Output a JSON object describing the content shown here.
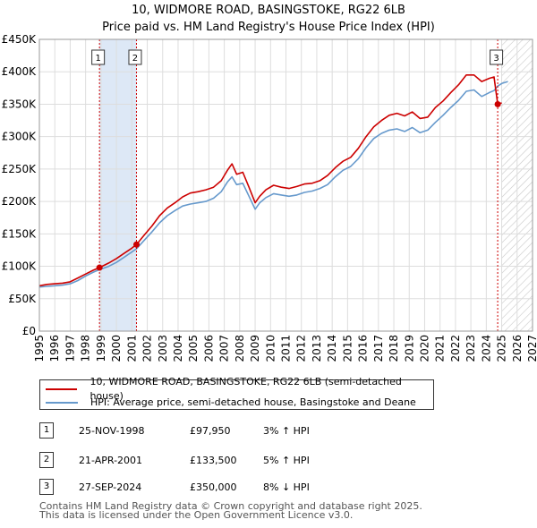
{
  "title_line1": "10, WIDMORE ROAD, BASINGSTOKE, RG22 6LB",
  "title_line2": "Price paid vs. HM Land Registry's House Price Index (HPI)",
  "colors": {
    "price_paid": "#cc0000",
    "hpi": "#6699cc",
    "shade": "#dde8f6",
    "grid": "#dddddd"
  },
  "legend": {
    "price_paid_label": "10, WIDMORE ROAD, BASINGSTOKE, RG22 6LB (semi-detached house)",
    "hpi_label": "HPI: Average price, semi-detached house, Basingstoke and Deane"
  },
  "transactions": [
    {
      "num": "1",
      "date": "25-NOV-1998",
      "price": "£97,950",
      "hpi": "3% ↑ HPI"
    },
    {
      "num": "2",
      "date": "21-APR-2001",
      "price": "£133,500",
      "hpi": "5% ↑ HPI"
    },
    {
      "num": "3",
      "date": "27-SEP-2024",
      "price": "£350,000",
      "hpi": "8% ↓ HPI"
    }
  ],
  "footer_line1": "Contains HM Land Registry data © Crown copyright and database right 2025.",
  "footer_line2": "This data is licensed under the Open Government Licence v3.0.",
  "chart_data": {
    "type": "line",
    "title": "10, WIDMORE ROAD, BASINGSTOKE, RG22 6LB — Price paid vs. HM Land Registry's House Price Index (HPI)",
    "xlabel": "",
    "ylabel": "",
    "xlim": [
      1995,
      2027
    ],
    "ylim": [
      0,
      450000
    ],
    "y_ticks": [
      0,
      50000,
      100000,
      150000,
      200000,
      250000,
      300000,
      350000,
      400000,
      450000
    ],
    "y_tick_labels": [
      "£0",
      "£50K",
      "£100K",
      "£150K",
      "£200K",
      "£250K",
      "£300K",
      "£350K",
      "£400K",
      "£450K"
    ],
    "x_ticks": [
      1995,
      1996,
      1997,
      1998,
      1999,
      2000,
      2001,
      2002,
      2003,
      2004,
      2005,
      2006,
      2007,
      2008,
      2009,
      2010,
      2011,
      2012,
      2013,
      2014,
      2015,
      2016,
      2017,
      2018,
      2019,
      2020,
      2021,
      2022,
      2023,
      2024,
      2025,
      2026,
      2027
    ],
    "x_tick_labels": [
      "1995",
      "1996",
      "1997",
      "1998",
      "1999",
      "2000",
      "2001",
      "2002",
      "2003",
      "2004",
      "2005",
      "2006",
      "2007",
      "2008",
      "2009",
      "2010",
      "2011",
      "2012",
      "2013",
      "2014",
      "2015",
      "2016",
      "2017",
      "2018",
      "2019",
      "2020",
      "2021",
      "2022",
      "2023",
      "2024",
      "2025",
      "2026",
      "2027"
    ],
    "grid": true,
    "shaded_period": [
      1998.9,
      2001.3
    ],
    "future_hatch_from": 2025.0,
    "series": [
      {
        "name": "10, WIDMORE ROAD, BASINGSTOKE, RG22 6LB (semi-detached house)",
        "color": "#cc0000",
        "x": [
          1995,
          1995.5,
          1996,
          1996.5,
          1997,
          1997.5,
          1998,
          1998.5,
          1998.9,
          1999.5,
          2000,
          2000.5,
          2001,
          2001.3,
          2001.8,
          2002.3,
          2002.8,
          2003.3,
          2003.8,
          2004.3,
          2004.8,
          2005.3,
          2005.8,
          2006.3,
          2006.8,
          2007.2,
          2007.5,
          2007.8,
          2008.2,
          2008.6,
          2009.0,
          2009.3,
          2009.7,
          2010.2,
          2010.7,
          2011.2,
          2011.7,
          2012.2,
          2012.7,
          2013.2,
          2013.7,
          2014.2,
          2014.7,
          2015.2,
          2015.7,
          2016.2,
          2016.7,
          2017.2,
          2017.7,
          2018.2,
          2018.7,
          2019.2,
          2019.7,
          2020.2,
          2020.7,
          2021.2,
          2021.7,
          2022.2,
          2022.7,
          2023.2,
          2023.7,
          2024.2,
          2024.5,
          2024.74,
          2025.0
        ],
        "values": [
          70000,
          72000,
          73000,
          74000,
          76000,
          82000,
          88000,
          94000,
          97950,
          105000,
          112000,
          120000,
          128000,
          133500,
          148000,
          162000,
          178000,
          190000,
          198000,
          207000,
          213000,
          215000,
          218000,
          222000,
          232000,
          248000,
          258000,
          242000,
          245000,
          222000,
          198000,
          208000,
          218000,
          225000,
          222000,
          220000,
          223000,
          227000,
          228000,
          232000,
          240000,
          252000,
          262000,
          268000,
          282000,
          300000,
          315000,
          325000,
          333000,
          336000,
          332000,
          338000,
          328000,
          330000,
          345000,
          355000,
          368000,
          380000,
          395000,
          395000,
          385000,
          390000,
          392000,
          350000,
          352000
        ]
      },
      {
        "name": "HPI: Average price, semi-detached house, Basingstoke and Deane",
        "color": "#6699cc",
        "x": [
          1995,
          1995.5,
          1996,
          1996.5,
          1997,
          1997.5,
          1998,
          1998.5,
          1998.9,
          1999.5,
          2000,
          2000.5,
          2001,
          2001.3,
          2001.8,
          2002.3,
          2002.8,
          2003.3,
          2003.8,
          2004.3,
          2004.8,
          2005.3,
          2005.8,
          2006.3,
          2006.8,
          2007.2,
          2007.5,
          2007.8,
          2008.2,
          2008.6,
          2009.0,
          2009.3,
          2009.7,
          2010.2,
          2010.7,
          2011.2,
          2011.7,
          2012.2,
          2012.7,
          2013.2,
          2013.7,
          2014.2,
          2014.7,
          2015.2,
          2015.7,
          2016.2,
          2016.7,
          2017.2,
          2017.7,
          2018.2,
          2018.7,
          2019.2,
          2019.7,
          2020.2,
          2020.7,
          2021.2,
          2021.7,
          2022.2,
          2022.7,
          2023.2,
          2023.7,
          2024.2,
          2024.5,
          2024.74,
          2025.0,
          2025.4
        ],
        "values": [
          68000,
          69000,
          70000,
          71000,
          73000,
          78000,
          85000,
          91000,
          95000,
          100000,
          106000,
          114000,
          122000,
          127000,
          140000,
          153000,
          167000,
          178000,
          186000,
          193000,
          196000,
          198000,
          200000,
          205000,
          215000,
          230000,
          238000,
          226000,
          228000,
          208000,
          188000,
          198000,
          206000,
          212000,
          210000,
          208000,
          210000,
          214000,
          216000,
          220000,
          226000,
          238000,
          248000,
          254000,
          266000,
          283000,
          297000,
          305000,
          310000,
          312000,
          308000,
          314000,
          306000,
          310000,
          322000,
          333000,
          345000,
          356000,
          370000,
          372000,
          362000,
          368000,
          371000,
          378000,
          382000,
          385000
        ]
      }
    ],
    "markers": [
      {
        "label": "1",
        "x": 1998.9,
        "y": 97950
      },
      {
        "label": "2",
        "x": 2001.3,
        "y": 133500
      },
      {
        "label": "3",
        "x": 2024.74,
        "y": 350000
      }
    ]
  }
}
